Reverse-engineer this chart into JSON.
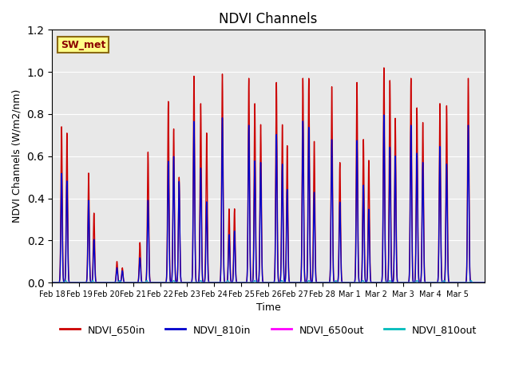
{
  "title": "NDVI Channels",
  "xlabel": "Time",
  "ylabel": "NDVI Channels (W/m2/nm)",
  "ylim": [
    0,
    1.2
  ],
  "annotation_text": "SW_met",
  "bg_color": "#e8e8e8",
  "series": {
    "NDVI_650in": {
      "color": "#cc0000",
      "lw": 1.0
    },
    "NDVI_810in": {
      "color": "#0000cc",
      "lw": 1.0
    },
    "NDVI_650out": {
      "color": "#ff00ff",
      "lw": 0.8
    },
    "NDVI_810out": {
      "color": "#00bbbb",
      "lw": 0.8
    }
  },
  "legend_labels": [
    "NDVI_650in",
    "NDVI_810in",
    "NDVI_650out",
    "NDVI_810out"
  ],
  "legend_colors": [
    "#cc0000",
    "#0000cc",
    "#ff00ff",
    "#00bbbb"
  ],
  "tick_labels": [
    "Feb 18",
    "Feb 19",
    "Feb 20",
    "Feb 21",
    "Feb 22",
    "Feb 23",
    "Feb 24",
    "Feb 25",
    "Feb 26",
    "Feb 27",
    "Feb 28",
    "Mar 1",
    "Mar 2",
    "Mar 3",
    "Mar 4",
    "Mar 5"
  ],
  "day_spikes": [
    {
      "peaks_650": [
        0.74,
        0.71
      ],
      "offsets": [
        0.35,
        0.55
      ],
      "ratio_810": [
        0.7,
        0.68
      ]
    },
    {
      "peaks_650": [
        0.52,
        0.33
      ],
      "offsets": [
        0.35,
        0.55
      ],
      "ratio_810": [
        0.75,
        0.62
      ]
    },
    {
      "peaks_650": [
        0.1,
        0.07
      ],
      "offsets": [
        0.4,
        0.6
      ],
      "ratio_810": [
        0.7,
        0.8
      ]
    },
    {
      "peaks_650": [
        0.19,
        0.62
      ],
      "offsets": [
        0.25,
        0.55
      ],
      "ratio_810": [
        0.62,
        0.63
      ]
    },
    {
      "peaks_650": [
        0.86,
        0.73,
        0.5
      ],
      "offsets": [
        0.3,
        0.5,
        0.7
      ],
      "ratio_810": [
        0.67,
        0.82,
        0.96
      ]
    },
    {
      "peaks_650": [
        0.98,
        0.85,
        0.71
      ],
      "offsets": [
        0.25,
        0.5,
        0.72
      ],
      "ratio_810": [
        0.78,
        0.64,
        0.54
      ]
    },
    {
      "peaks_650": [
        0.99,
        0.35,
        0.35
      ],
      "offsets": [
        0.3,
        0.55,
        0.75
      ],
      "ratio_810": [
        0.79,
        0.65,
        0.7
      ]
    },
    {
      "peaks_650": [
        0.97,
        0.85,
        0.75
      ],
      "offsets": [
        0.28,
        0.5,
        0.72
      ],
      "ratio_810": [
        0.77,
        0.68,
        0.76
      ]
    },
    {
      "peaks_650": [
        0.95,
        0.75,
        0.65
      ],
      "offsets": [
        0.3,
        0.52,
        0.7
      ],
      "ratio_810": [
        0.74,
        0.75,
        0.68
      ]
    },
    {
      "peaks_650": [
        0.97,
        0.97,
        0.67
      ],
      "offsets": [
        0.28,
        0.5,
        0.7
      ],
      "ratio_810": [
        0.79,
        0.76,
        0.64
      ]
    },
    {
      "peaks_650": [
        0.93,
        0.57
      ],
      "offsets": [
        0.35,
        0.65
      ],
      "ratio_810": [
        0.73,
        0.67
      ]
    },
    {
      "peaks_650": [
        0.95,
        0.68,
        0.58
      ],
      "offsets": [
        0.28,
        0.52,
        0.72
      ],
      "ratio_810": [
        0.71,
        0.68,
        0.6
      ]
    },
    {
      "peaks_650": [
        1.02,
        0.96,
        0.78
      ],
      "offsets": [
        0.28,
        0.5,
        0.7
      ],
      "ratio_810": [
        0.78,
        0.67,
        0.77
      ]
    },
    {
      "peaks_650": [
        0.97,
        0.83,
        0.76
      ],
      "offsets": [
        0.28,
        0.5,
        0.72
      ],
      "ratio_810": [
        0.77,
        0.74,
        0.75
      ]
    },
    {
      "peaks_650": [
        0.85,
        0.84
      ],
      "offsets": [
        0.35,
        0.6
      ],
      "ratio_810": [
        0.76,
        0.67
      ]
    },
    {
      "peaks_650": [
        0.97
      ],
      "offsets": [
        0.4
      ],
      "ratio_810": [
        0.77
      ]
    }
  ]
}
